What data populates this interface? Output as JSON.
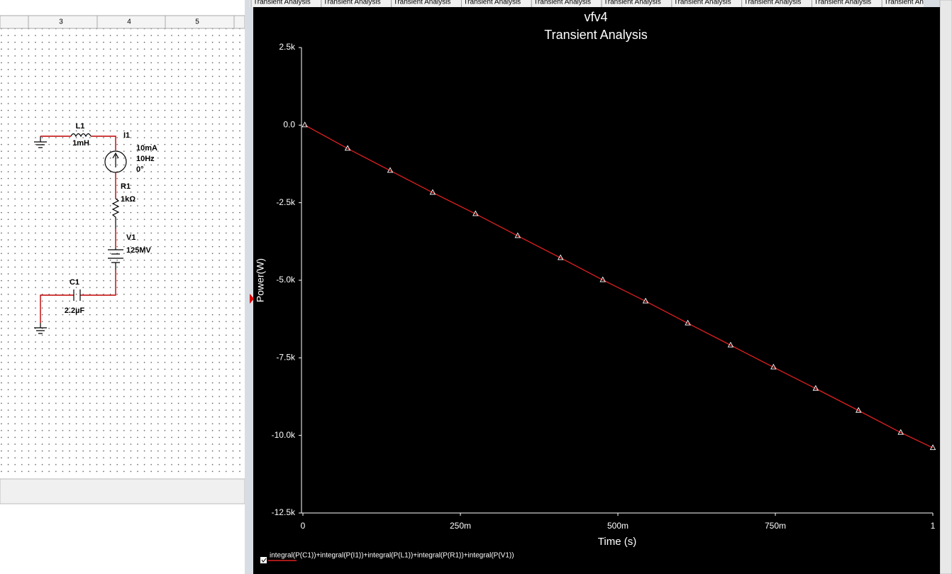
{
  "tabs": [
    "Transient Analysis",
    "Transient Analysis",
    "Transient Analysis",
    "Transient Analysis",
    "Transient Analysis",
    "Transient Analysis",
    "Transient Analysis",
    "Transient Analysis",
    "Transient Analysis",
    "Transient Analysis"
  ],
  "schematic": {
    "ruler": [
      "3",
      "4",
      "5"
    ],
    "L1": {
      "name": "L1",
      "value": "1mH"
    },
    "I1": {
      "name": "I1",
      "amplitude": "10mA",
      "frequency": "10Hz",
      "phase": "0°"
    },
    "R1": {
      "name": "R1",
      "value": "1kΩ"
    },
    "V1": {
      "name": "V1",
      "value": "125MV"
    },
    "C1": {
      "name": "C1",
      "value": "2.2µF"
    }
  },
  "chart_data": {
    "type": "line",
    "title": "vfv4",
    "subtitle": "Transient Analysis",
    "x_label": "Time (s)",
    "y_label": "Power(W)",
    "x": [
      0.003,
      0.071,
      0.1385,
      0.206,
      0.274,
      0.341,
      0.409,
      0.476,
      0.544,
      0.611,
      0.679,
      0.747,
      0.814,
      0.882,
      0.949,
      1.0
    ],
    "series": [
      {
        "name": "integral(P(C1))+integral(P(I1))+integral(P(L1))+integral(P(R1))+integral(P(V1))",
        "color": "#e02020",
        "values": [
          0,
          -755,
          -1465,
          -2174,
          -2860,
          -3570,
          -4279,
          -4989,
          -5675,
          -6384,
          -7094,
          -7803,
          -8490,
          -9199,
          -9908,
          -10400
        ]
      }
    ],
    "xlim": [
      0,
      1
    ],
    "xticks": [
      0,
      {
        "value": 0.25,
        "label": "250m"
      },
      {
        "value": 0.5,
        "label": "500m"
      },
      {
        "value": 0.75,
        "label": "750m"
      },
      1
    ],
    "ylim": [
      -12500,
      2500
    ],
    "yticks": [
      {
        "value": 2500,
        "label": "2.5k"
      },
      {
        "value": 0,
        "label": "0.0"
      },
      {
        "value": -2500,
        "label": "-2.5k"
      },
      {
        "value": -5000,
        "label": "-5.0k"
      },
      {
        "value": -7500,
        "label": "-7.5k"
      },
      {
        "value": -10000,
        "label": "-10.0k"
      },
      {
        "value": -12500,
        "label": "-12.5k"
      }
    ],
    "grid": false
  }
}
